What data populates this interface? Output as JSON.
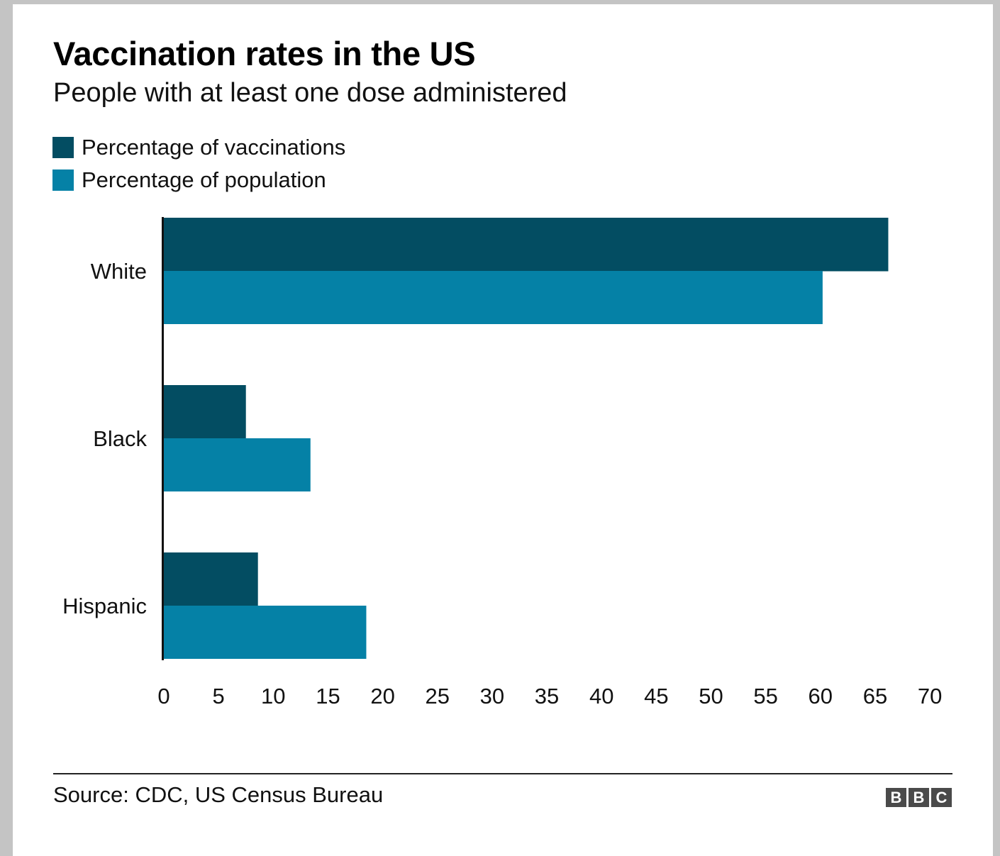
{
  "header": {
    "title": "Vaccination rates in the US",
    "subtitle": "People with at least one dose administered"
  },
  "legend": [
    {
      "label": "Percentage of vaccinations",
      "color": "#034d62"
    },
    {
      "label": "Percentage of population",
      "color": "#0581a6"
    }
  ],
  "chart_data": {
    "type": "bar",
    "orientation": "horizontal",
    "title": "Vaccination rates in the US",
    "subtitle": "People with at least one dose administered",
    "categories": [
      "White",
      "Black",
      "Hispanic"
    ],
    "series": [
      {
        "name": "Percentage of vaccinations",
        "color": "#034d62",
        "values": [
          66.2,
          7.5,
          8.6
        ]
      },
      {
        "name": "Percentage of population",
        "color": "#0581a6",
        "values": [
          60.2,
          13.4,
          18.5
        ]
      }
    ],
    "xlim": [
      0,
      70
    ],
    "xticks": [
      0,
      5,
      10,
      15,
      20,
      25,
      30,
      35,
      40,
      45,
      50,
      55,
      60,
      65,
      70
    ],
    "grid": false,
    "legend_position": "top-left"
  },
  "footer": {
    "source": "Source: CDC, US Census Bureau",
    "logo_letters": [
      "B",
      "B",
      "C"
    ]
  }
}
